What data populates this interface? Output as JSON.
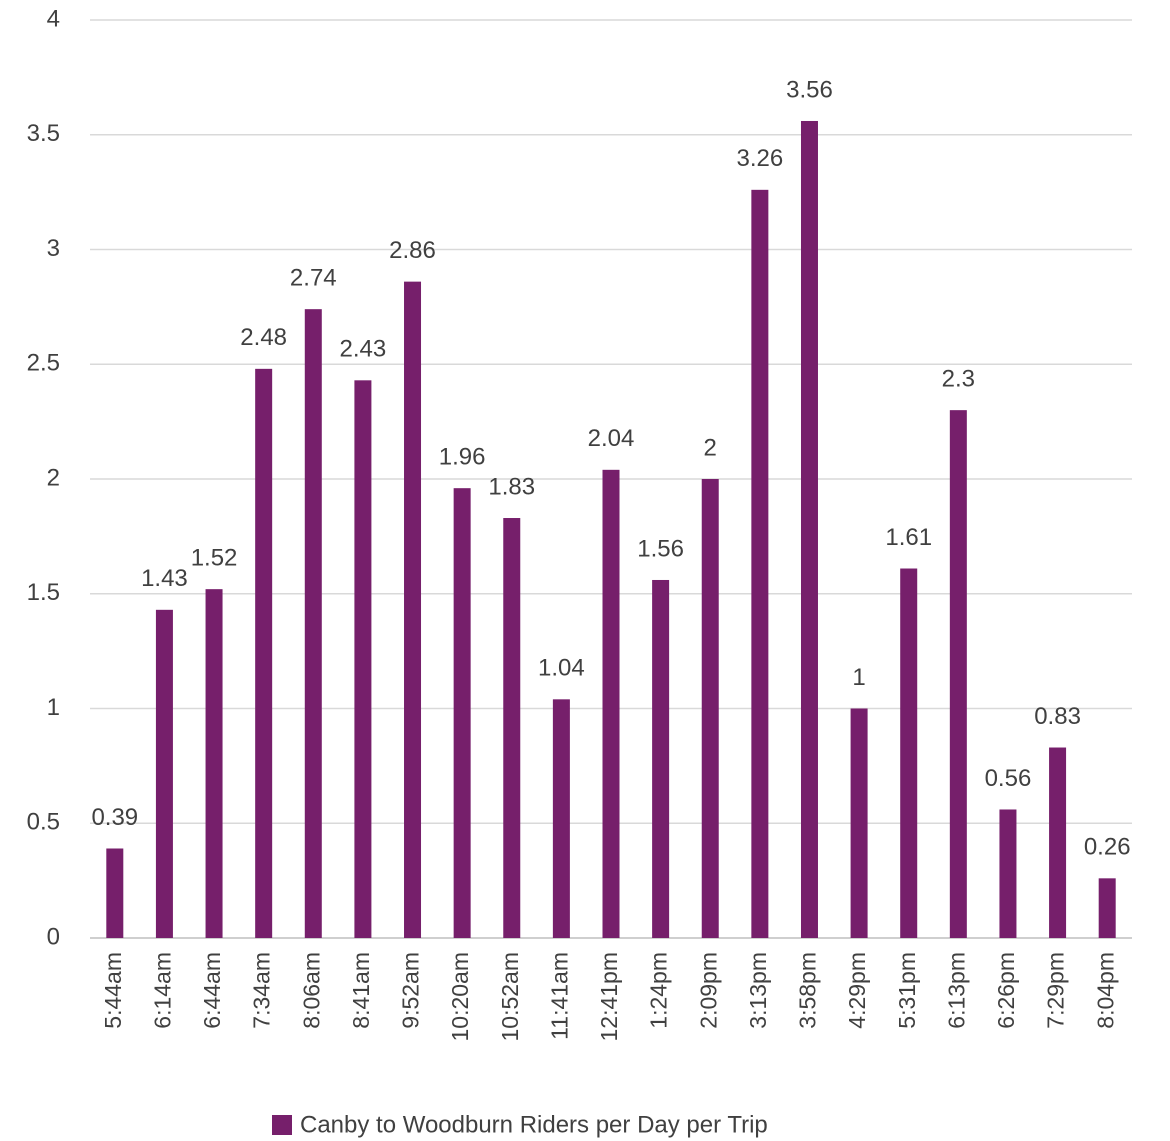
{
  "chart_data": {
    "type": "bar",
    "categories": [
      "5:44am",
      "6:14am",
      "6:44am",
      "7:34am",
      "8:06am",
      "8:41am",
      "9:52am",
      "10:20am",
      "10:52am",
      "11:41am",
      "12:41pm",
      "1:24pm",
      "2:09pm",
      "3:13pm",
      "3:58pm",
      "4:29pm",
      "5:31pm",
      "6:13pm",
      "6:26pm",
      "7:29pm",
      "8:04pm"
    ],
    "series": [
      {
        "name": "Canby to Woodburn Riders per Day per Trip",
        "color": "#761f6b",
        "values": [
          0.39,
          1.43,
          1.52,
          2.48,
          2.74,
          2.43,
          2.86,
          1.96,
          1.83,
          1.04,
          2.04,
          1.56,
          2,
          3.26,
          3.56,
          1,
          1.61,
          2.3,
          0.56,
          0.83,
          0.26
        ]
      }
    ],
    "ylim": [
      0,
      4
    ],
    "yticks": [
      0,
      0.5,
      1,
      1.5,
      2,
      2.5,
      3,
      3.5,
      4
    ],
    "grid": true,
    "legend": "bottom"
  }
}
